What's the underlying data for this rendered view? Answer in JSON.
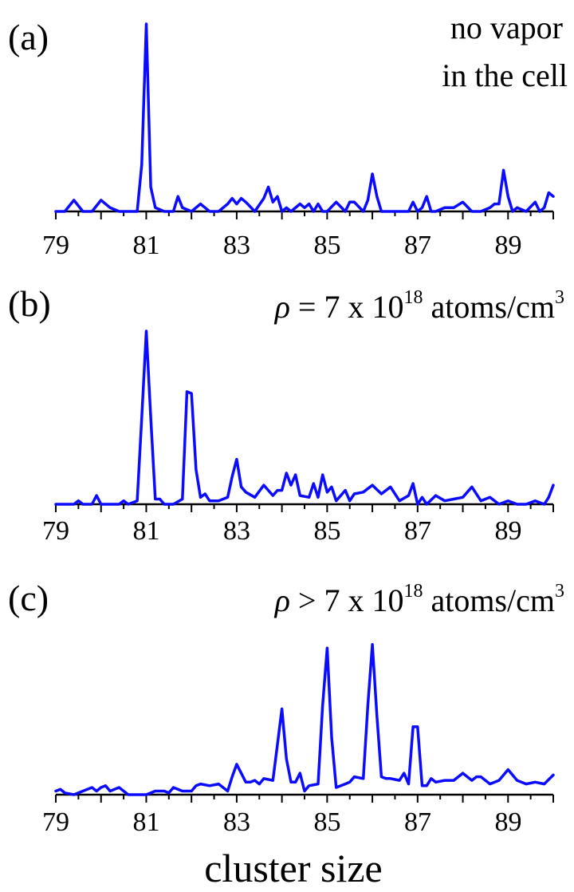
{
  "chart_data": [
    {
      "type": "line",
      "panel_label": "(a)",
      "annotation": [
        "no vapor",
        "in the cell"
      ],
      "xlim": [
        79,
        90
      ],
      "xticks": [
        "79",
        "81",
        "83",
        "85",
        "87",
        "89"
      ],
      "x": [
        79,
        79.2,
        79.4,
        79.6,
        79.8,
        80,
        80.2,
        80.4,
        80.6,
        80.8,
        80.9,
        81,
        81.1,
        81.2,
        81.4,
        81.6,
        81.7,
        81.8,
        82,
        82.2,
        82.4,
        82.6,
        82.8,
        82.9,
        83,
        83.1,
        83.2,
        83.4,
        83.6,
        83.7,
        83.8,
        83.9,
        84,
        84.1,
        84.2,
        84.4,
        84.5,
        84.6,
        84.7,
        84.8,
        84.9,
        85,
        85.2,
        85.4,
        85.5,
        85.6,
        85.8,
        85.9,
        86,
        86.1,
        86.2,
        86.4,
        86.6,
        86.8,
        86.9,
        87,
        87.1,
        87.2,
        87.3,
        87.4,
        87.6,
        87.8,
        88,
        88.2,
        88.4,
        88.6,
        88.7,
        88.8,
        88.9,
        89,
        89.1,
        89.2,
        89.4,
        89.6,
        89.7,
        89.8,
        89.9,
        90
      ],
      "y": [
        0,
        0,
        0.06,
        0,
        0,
        0.06,
        0.02,
        0,
        0,
        0,
        0.25,
        1,
        0.13,
        0.02,
        0,
        0,
        0.08,
        0.02,
        0,
        0.04,
        0,
        0,
        0.04,
        0.07,
        0.04,
        0.07,
        0.05,
        0,
        0.07,
        0.13,
        0.05,
        0.08,
        0,
        0.02,
        0,
        0.04,
        0.02,
        0.04,
        0,
        0.04,
        0,
        0,
        0.05,
        0,
        0.05,
        0.05,
        0,
        0.06,
        0.2,
        0.08,
        0,
        0,
        0,
        0,
        0.05,
        0,
        0.02,
        0.08,
        0,
        0,
        0.02,
        0.02,
        0.05,
        0,
        0,
        0.02,
        0.04,
        0.04,
        0.22,
        0.08,
        0,
        0.02,
        0,
        0.05,
        0,
        0.02,
        0.1,
        0.08
      ]
    },
    {
      "type": "line",
      "panel_label": "(b)",
      "annotation": "ρ = 7 x 10^18 atoms/cm^3",
      "annotation_parts": {
        "rho": "ρ",
        "mid": " = 7 x 10",
        "exp1": "18",
        "unit": " atoms/cm",
        "exp2": "3"
      },
      "xlim": [
        79,
        90
      ],
      "xticks": [
        "79",
        "81",
        "83",
        "85",
        "87",
        "89"
      ],
      "x": [
        79,
        79.2,
        79.4,
        79.5,
        79.6,
        79.8,
        79.9,
        80,
        80.2,
        80.4,
        80.5,
        80.6,
        80.8,
        80.9,
        81,
        81.1,
        81.2,
        81.3,
        81.4,
        81.6,
        81.8,
        81.9,
        82,
        82.1,
        82.2,
        82.3,
        82.4,
        82.6,
        82.8,
        82.9,
        83,
        83.1,
        83.2,
        83.4,
        83.6,
        83.8,
        83.9,
        84,
        84.1,
        84.2,
        84.3,
        84.4,
        84.6,
        84.7,
        84.8,
        84.9,
        85,
        85.1,
        85.2,
        85.4,
        85.5,
        85.6,
        85.8,
        86,
        86.2,
        86.4,
        86.6,
        86.8,
        86.9,
        87,
        87.1,
        87.2,
        87.4,
        87.6,
        87.8,
        88,
        88.2,
        88.4,
        88.6,
        88.8,
        89,
        89.2,
        89.4,
        89.6,
        89.8,
        89.9,
        90
      ],
      "y": [
        0,
        0,
        0,
        0.02,
        0,
        0,
        0.05,
        0,
        0,
        0,
        0.02,
        0,
        0.02,
        0.5,
        1,
        0.5,
        0.03,
        0.03,
        0,
        0,
        0.03,
        0.65,
        0.64,
        0.2,
        0.04,
        0.06,
        0.02,
        0.02,
        0.04,
        0.16,
        0.26,
        0.1,
        0.07,
        0.04,
        0.11,
        0.05,
        0.08,
        0.08,
        0.18,
        0.11,
        0.17,
        0.05,
        0.04,
        0.12,
        0.04,
        0.17,
        0.07,
        0.1,
        0.02,
        0.08,
        0.02,
        0.06,
        0.07,
        0.11,
        0.06,
        0.1,
        0.02,
        0.05,
        0.12,
        0,
        0.04,
        0,
        0.05,
        0.02,
        0.03,
        0.04,
        0.1,
        0.02,
        0.04,
        0,
        0.02,
        0,
        0,
        0.02,
        0,
        0.04,
        0.11
      ]
    },
    {
      "type": "line",
      "panel_label": "(c)",
      "annotation": "ρ > 7 x 10^18 atoms/cm^3",
      "annotation_parts": {
        "rho": "ρ",
        "mid": " > 7 x 10",
        "exp1": "18",
        "unit": " atoms/cm",
        "exp2": "3"
      },
      "xlim": [
        79,
        90
      ],
      "xticks": [
        "79",
        "81",
        "83",
        "85",
        "87",
        "89"
      ],
      "x": [
        79,
        79.1,
        79.2,
        79.4,
        79.6,
        79.8,
        79.9,
        80,
        80.1,
        80.2,
        80.3,
        80.4,
        80.6,
        80.8,
        81,
        81.2,
        81.4,
        81.5,
        81.6,
        81.8,
        82,
        82.1,
        82.2,
        82.4,
        82.6,
        82.8,
        82.9,
        83,
        83.1,
        83.2,
        83.3,
        83.4,
        83.5,
        83.6,
        83.8,
        83.9,
        84,
        84.1,
        84.2,
        84.3,
        84.4,
        84.5,
        84.6,
        84.8,
        84.9,
        85,
        85.1,
        85.2,
        85.4,
        85.5,
        85.6,
        85.8,
        85.9,
        86,
        86.1,
        86.2,
        86.3,
        86.4,
        86.6,
        86.7,
        86.8,
        86.9,
        87,
        87.1,
        87.2,
        87.3,
        87.4,
        87.6,
        87.8,
        88,
        88.2,
        88.3,
        88.4,
        88.6,
        88.8,
        89,
        89.2,
        89.4,
        89.6,
        89.8,
        90
      ],
      "y": [
        0.02,
        0.03,
        0.01,
        0,
        0.02,
        0.04,
        0.02,
        0.04,
        0.05,
        0.02,
        0.03,
        0.04,
        0,
        0,
        0,
        0.02,
        0.02,
        0.01,
        0.04,
        0.02,
        0.02,
        0.05,
        0.06,
        0.05,
        0.06,
        0.02,
        0.1,
        0.17,
        0.12,
        0.07,
        0.07,
        0.08,
        0.06,
        0.09,
        0.08,
        0.28,
        0.48,
        0.2,
        0.07,
        0.07,
        0.12,
        0.02,
        0.05,
        0.06,
        0.5,
        0.82,
        0.32,
        0.04,
        0.06,
        0.07,
        0.1,
        0.09,
        0.5,
        0.84,
        0.44,
        0.1,
        0.09,
        0.09,
        0.08,
        0.12,
        0.06,
        0.38,
        0.38,
        0.05,
        0.05,
        0.09,
        0.07,
        0.08,
        0.08,
        0.12,
        0.08,
        0.1,
        0.1,
        0.06,
        0.08,
        0.14,
        0.08,
        0.06,
        0.07,
        0.06,
        0.11
      ]
    }
  ],
  "xlabel": "cluster size"
}
